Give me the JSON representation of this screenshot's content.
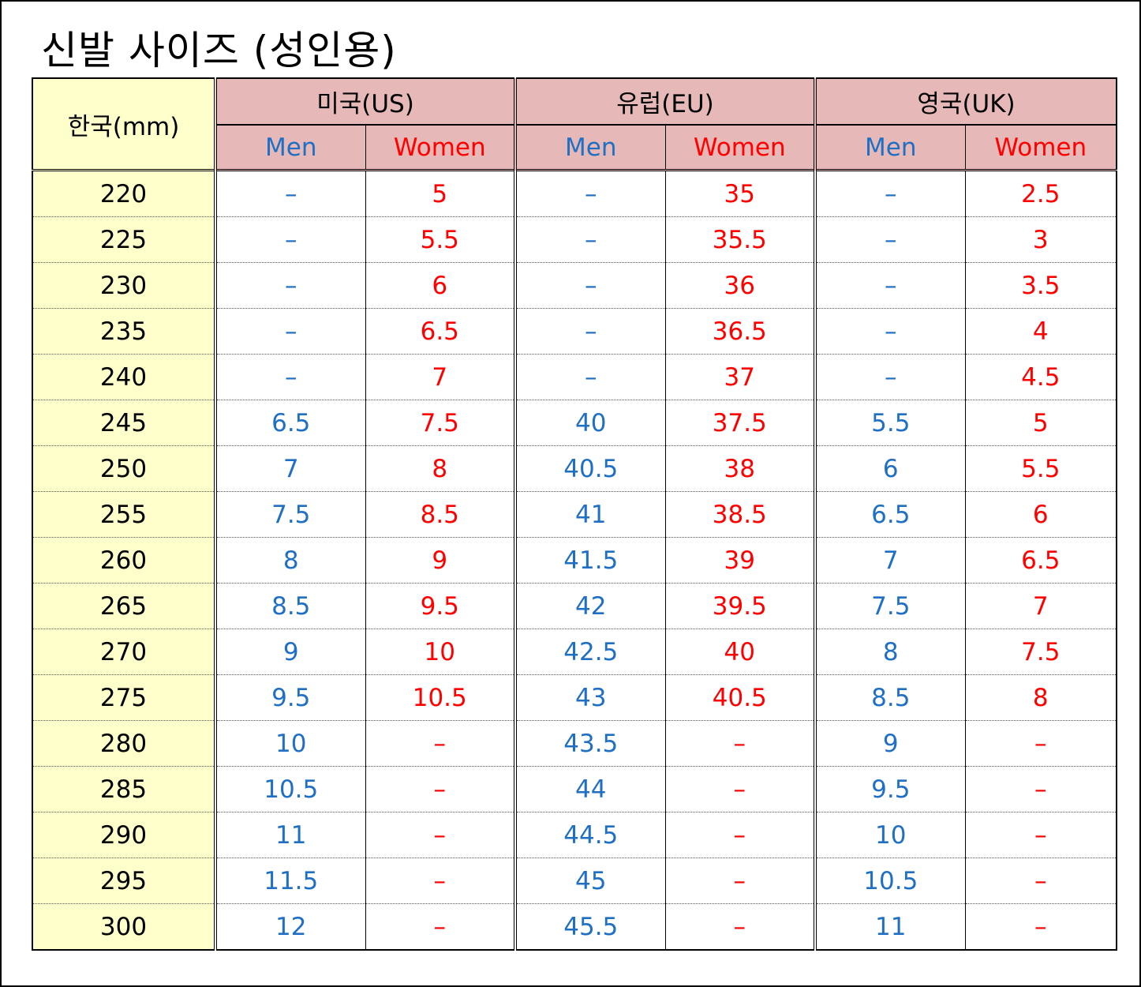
{
  "title": "신발 사이즈 (성인용)",
  "headers": {
    "korea": "한국(mm)",
    "us": "미국(US)",
    "eu": "유럽(EU)",
    "uk": "영국(UK)",
    "men": "Men",
    "women": "Women"
  },
  "colors": {
    "men_text": "#1f6fc5",
    "women_text": "#ff0000",
    "korea_column_bg": "#ffffcc",
    "header_bg": "#e6b8b7"
  },
  "rows": [
    {
      "kr": "220",
      "us_men": "–",
      "us_women": "5",
      "eu_men": "–",
      "eu_women": "35",
      "uk_men": "–",
      "uk_women": "2.5"
    },
    {
      "kr": "225",
      "us_men": "–",
      "us_women": "5.5",
      "eu_men": "–",
      "eu_women": "35.5",
      "uk_men": "–",
      "uk_women": "3"
    },
    {
      "kr": "230",
      "us_men": "–",
      "us_women": "6",
      "eu_men": "–",
      "eu_women": "36",
      "uk_men": "–",
      "uk_women": "3.5"
    },
    {
      "kr": "235",
      "us_men": "–",
      "us_women": "6.5",
      "eu_men": "–",
      "eu_women": "36.5",
      "uk_men": "–",
      "uk_women": "4"
    },
    {
      "kr": "240",
      "us_men": "–",
      "us_women": "7",
      "eu_men": "–",
      "eu_women": "37",
      "uk_men": "–",
      "uk_women": "4.5"
    },
    {
      "kr": "245",
      "us_men": "6.5",
      "us_women": "7.5",
      "eu_men": "40",
      "eu_women": "37.5",
      "uk_men": "5.5",
      "uk_women": "5"
    },
    {
      "kr": "250",
      "us_men": "7",
      "us_women": "8",
      "eu_men": "40.5",
      "eu_women": "38",
      "uk_men": "6",
      "uk_women": "5.5"
    },
    {
      "kr": "255",
      "us_men": "7.5",
      "us_women": "8.5",
      "eu_men": "41",
      "eu_women": "38.5",
      "uk_men": "6.5",
      "uk_women": "6"
    },
    {
      "kr": "260",
      "us_men": "8",
      "us_women": "9",
      "eu_men": "41.5",
      "eu_women": "39",
      "uk_men": "7",
      "uk_women": "6.5"
    },
    {
      "kr": "265",
      "us_men": "8.5",
      "us_women": "9.5",
      "eu_men": "42",
      "eu_women": "39.5",
      "uk_men": "7.5",
      "uk_women": "7"
    },
    {
      "kr": "270",
      "us_men": "9",
      "us_women": "10",
      "eu_men": "42.5",
      "eu_women": "40",
      "uk_men": "8",
      "uk_women": "7.5"
    },
    {
      "kr": "275",
      "us_men": "9.5",
      "us_women": "10.5",
      "eu_men": "43",
      "eu_women": "40.5",
      "uk_men": "8.5",
      "uk_women": "8"
    },
    {
      "kr": "280",
      "us_men": "10",
      "us_women": "–",
      "eu_men": "43.5",
      "eu_women": "–",
      "uk_men": "9",
      "uk_women": "–"
    },
    {
      "kr": "285",
      "us_men": "10.5",
      "us_women": "–",
      "eu_men": "44",
      "eu_women": "–",
      "uk_men": "9.5",
      "uk_women": "–"
    },
    {
      "kr": "290",
      "us_men": "11",
      "us_women": "–",
      "eu_men": "44.5",
      "eu_women": "–",
      "uk_men": "10",
      "uk_women": "–"
    },
    {
      "kr": "295",
      "us_men": "11.5",
      "us_women": "–",
      "eu_men": "45",
      "eu_women": "–",
      "uk_men": "10.5",
      "uk_women": "–"
    },
    {
      "kr": "300",
      "us_men": "12",
      "us_women": "–",
      "eu_men": "45.5",
      "eu_women": "–",
      "uk_men": "11",
      "uk_women": "–"
    }
  ]
}
